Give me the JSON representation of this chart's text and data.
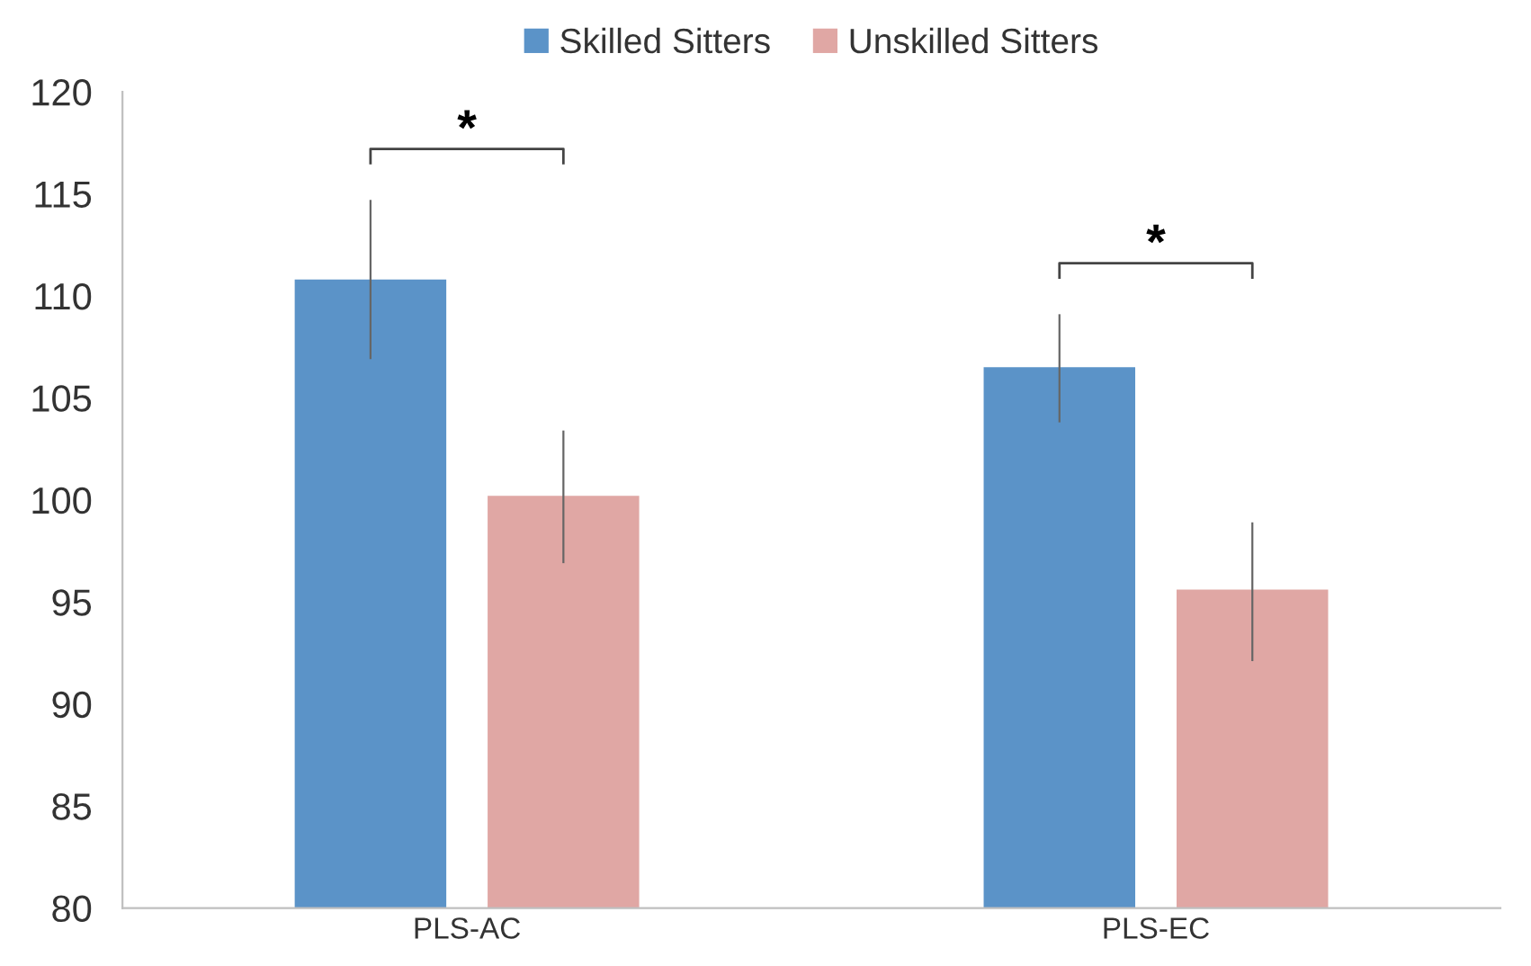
{
  "chart_data": {
    "type": "bar",
    "categories": [
      "PLS-AC",
      "PLS-EC"
    ],
    "series": [
      {
        "name": "Skilled Sitters",
        "color": "#5b93c8",
        "values": [
          110.8,
          106.5
        ],
        "errors": [
          [
            106.9,
            114.7
          ],
          [
            103.8,
            109.1
          ]
        ]
      },
      {
        "name": "Unskilled Sitters",
        "color": "#e0a7a4",
        "values": [
          100.2,
          95.6
        ],
        "errors": [
          [
            96.9,
            103.4
          ],
          [
            92.1,
            98.9
          ]
        ]
      }
    ],
    "ylim": [
      80,
      120
    ],
    "yticks": [
      80,
      85,
      90,
      95,
      100,
      105,
      110,
      115,
      120
    ],
    "grid": false,
    "legend": "top",
    "annotations": [
      "*",
      "*"
    ]
  }
}
